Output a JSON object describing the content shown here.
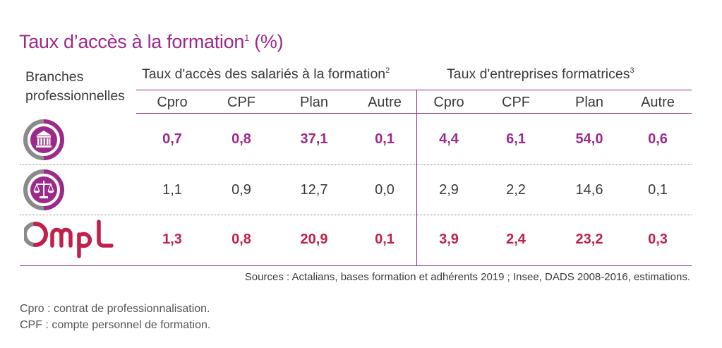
{
  "title": {
    "text": "Taux d’accès à la formation",
    "sup": "1",
    "suffix": " (%)"
  },
  "header": {
    "branches_line1": "Branches",
    "branches_line2": "professionnelles",
    "group1": {
      "text": "Taux d'accès des salariés à la formation",
      "sup": "2"
    },
    "group2": {
      "text": "Taux d'entreprises formatrices",
      "sup": "3"
    },
    "columns": [
      "Cpro",
      "CPF",
      "Plan",
      "Autre",
      "Cpro",
      "CPF",
      "Plan",
      "Autre"
    ]
  },
  "rows": [
    {
      "icon": "bank-icon",
      "values": [
        "0,7",
        "0,8",
        "37,1",
        "0,1",
        "4,4",
        "6,1",
        "54,0",
        "0,6"
      ]
    },
    {
      "icon": "scales-of-justice-icon",
      "values": [
        "1,1",
        "0,9",
        "12,7",
        "0,0",
        "2,9",
        "2,2",
        "14,6",
        "0,1"
      ]
    },
    {
      "icon": "ompl-logo",
      "logo_text": "Ompl",
      "values": [
        "1,3",
        "0,8",
        "20,9",
        "0,1",
        "3,9",
        "2,4",
        "23,2",
        "0,3"
      ]
    }
  ],
  "sources": "Sources : Actalians, bases formation et adhérents 2019 ; Insee, DADS 2008-2016, estimations.",
  "notes": [
    "Cpro : contrat de professionnalisation.",
    "CPF : compte personnel de formation."
  ],
  "colors": {
    "purple": "#9c2a8a",
    "red": "#c0204a",
    "grey": "#8a8a8a",
    "rule": "#8e2a7f"
  }
}
